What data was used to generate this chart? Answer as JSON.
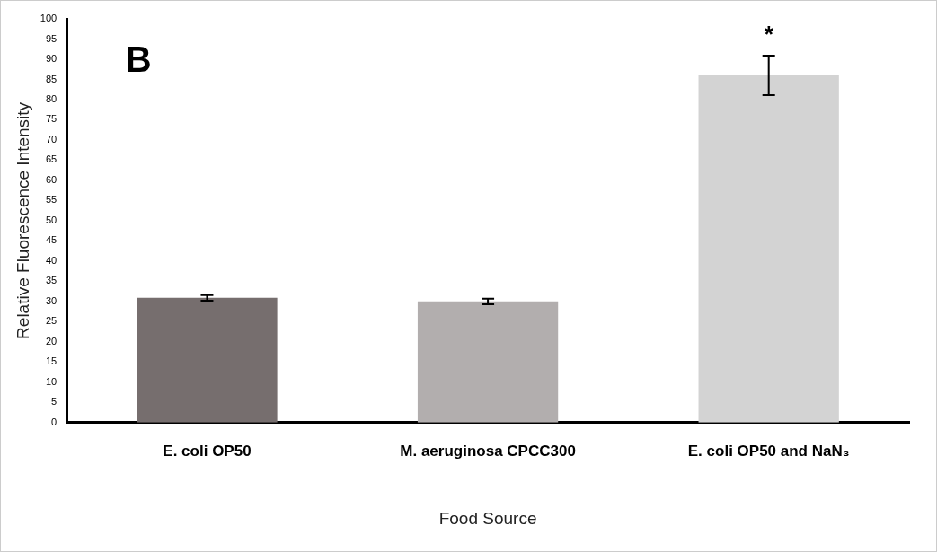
{
  "chart_data": {
    "type": "bar",
    "xlabel": "Food Source",
    "ylabel": "Relative Fluorescence Intensity",
    "categories": [
      "E. coli OP50",
      "M. aeruginosa CPCC300",
      "E. coli OP50 and NaN₃"
    ],
    "values": [
      30.9,
      30.0,
      86.0
    ],
    "errors": [
      0.7,
      0.7,
      4.9
    ],
    "colors": [
      "#766e6e",
      "#b2aeae",
      "#d3d3d3"
    ],
    "ylim": [
      0,
      100
    ],
    "yticks": [
      0,
      5,
      10,
      15,
      20,
      25,
      30,
      35,
      40,
      45,
      50,
      55,
      60,
      65,
      70,
      75,
      80,
      85,
      90,
      95,
      100
    ],
    "grid": false,
    "annotations": [
      "B",
      "*"
    ]
  }
}
